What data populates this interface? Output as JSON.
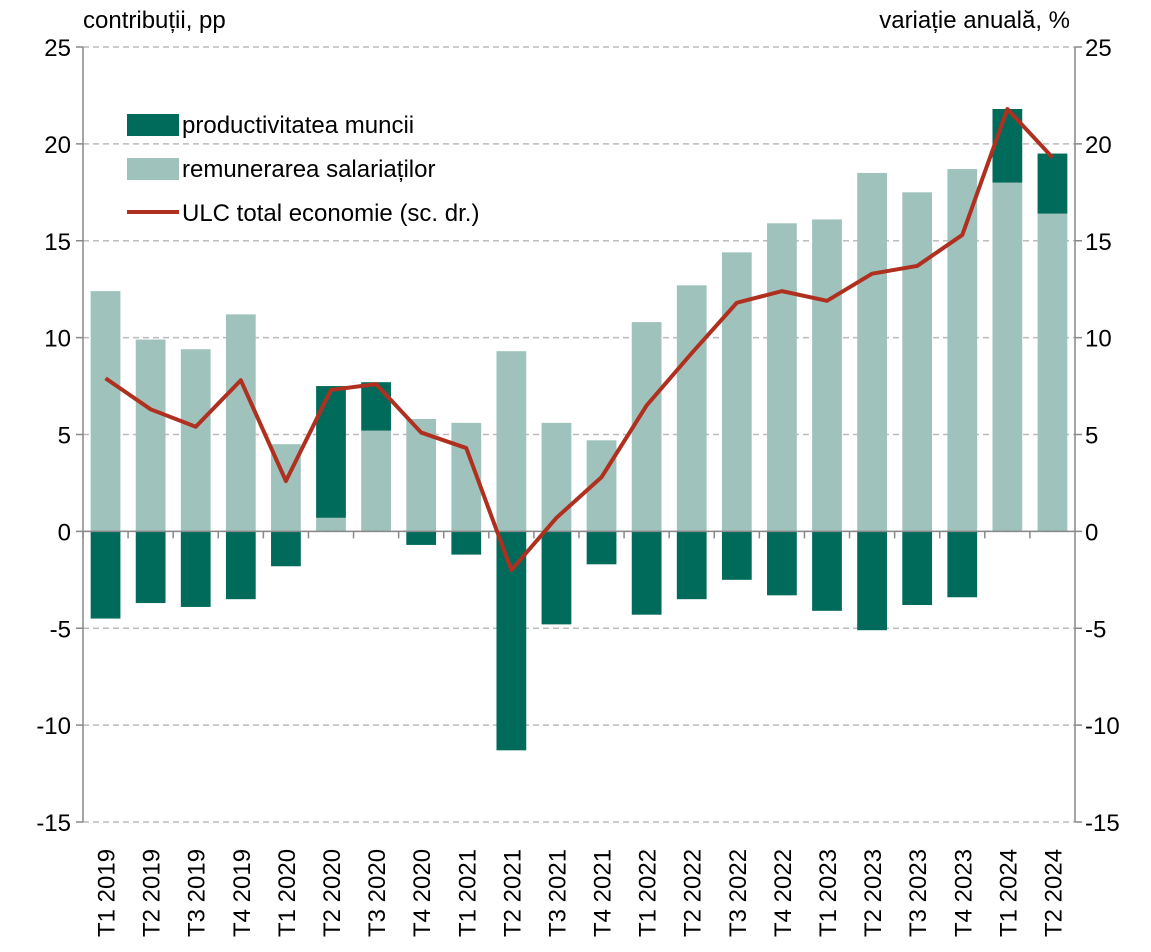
{
  "chart_data": {
    "type": "stacked_bar_line",
    "y_label": "contribuții, pp",
    "y2_label": "variație anuală, %",
    "categories": [
      "T1 2019",
      "T2 2019",
      "T3 2019",
      "T4 2019",
      "T1 2020",
      "T2 2020",
      "T3 2020",
      "T4 2020",
      "T1 2021",
      "T2 2021",
      "T3 2021",
      "T4 2021",
      "T1 2022",
      "T2 2022",
      "T3 2022",
      "T4 2022",
      "T1 2023",
      "T2 2023",
      "T3 2023",
      "T4 2023",
      "T1 2024",
      "T2 2024"
    ],
    "series": [
      {
        "name": "productivitatea muncii",
        "color": "#006b5a",
        "kind": "bar",
        "values": [
          -4.5,
          -3.7,
          -3.9,
          -3.5,
          -1.8,
          6.8,
          2.5,
          -0.7,
          -1.2,
          -11.3,
          -4.8,
          -1.7,
          -4.3,
          -3.5,
          -2.5,
          -3.3,
          -4.1,
          -5.1,
          -3.8,
          -3.4,
          3.8,
          3.1
        ]
      },
      {
        "name": "remunerarea salariaților",
        "color": "#9fc2bc",
        "kind": "bar",
        "values": [
          12.4,
          9.9,
          9.4,
          11.2,
          4.5,
          0.7,
          5.2,
          5.8,
          5.6,
          9.3,
          5.6,
          4.7,
          10.8,
          12.7,
          14.4,
          15.9,
          16.1,
          18.5,
          17.5,
          18.7,
          18.0,
          16.4
        ]
      },
      {
        "name": "ULC total economie (sc. dr.)",
        "color": "#b03020",
        "kind": "line",
        "axis": "y2",
        "values": [
          7.9,
          6.3,
          5.4,
          7.8,
          2.6,
          7.3,
          7.6,
          5.1,
          4.3,
          -2.0,
          0.7,
          2.8,
          6.5,
          9.2,
          11.8,
          12.4,
          11.9,
          13.3,
          13.7,
          15.3,
          21.8,
          19.3
        ]
      }
    ],
    "ylim": [
      -15,
      25
    ],
    "yticks": [
      -15,
      -10,
      -5,
      0,
      5,
      10,
      15,
      20,
      25
    ],
    "y2lim": [
      -15,
      25
    ],
    "y2ticks": [
      -15,
      -10,
      -5,
      0,
      5,
      10,
      15,
      20,
      25
    ],
    "grid": true,
    "legend": "upper left"
  }
}
